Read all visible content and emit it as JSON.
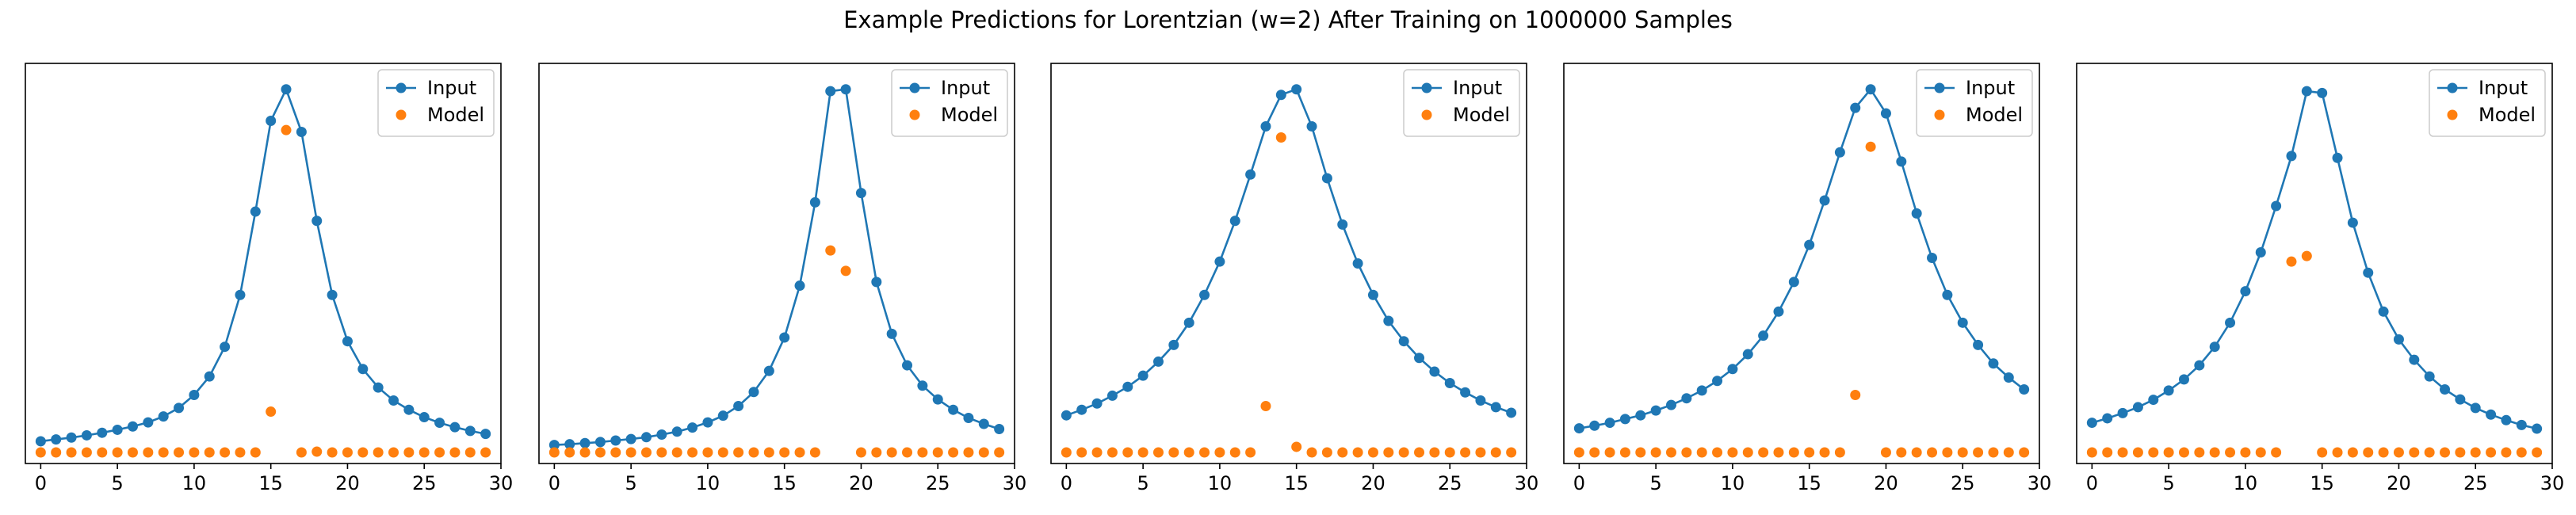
{
  "figure": {
    "title": "Example Predictions for Lorentzian (w=2) After Training on 1000000 Samples"
  },
  "colors": {
    "input": "#1f77b4",
    "model": "#ff7f0e",
    "axes": "#000000",
    "background": "#ffffff"
  },
  "chart_data": [
    {
      "type": "line",
      "legend": [
        "Input",
        "Model"
      ],
      "legend_position": "top-right",
      "grid": false,
      "xlim": [
        -1,
        30
      ],
      "ylim": [
        -0.01,
        1.07
      ],
      "xticks": [
        0,
        5,
        10,
        15,
        20,
        25,
        30
      ],
      "series": [
        {
          "name": "Input",
          "style": "line+markers",
          "x": [
            0,
            1,
            2,
            3,
            4,
            5,
            6,
            7,
            8,
            9,
            10,
            11,
            12,
            13,
            14,
            15,
            16,
            17,
            18,
            19,
            20,
            21,
            22,
            23,
            24,
            25,
            26,
            27,
            28,
            29
          ],
          "y": [
            0.05,
            0.055,
            0.06,
            0.066,
            0.073,
            0.081,
            0.09,
            0.101,
            0.117,
            0.14,
            0.175,
            0.225,
            0.305,
            0.445,
            0.67,
            0.915,
            1.0,
            0.885,
            0.645,
            0.445,
            0.32,
            0.245,
            0.195,
            0.16,
            0.135,
            0.115,
            0.1,
            0.088,
            0.078,
            0.07
          ]
        },
        {
          "name": "Model",
          "style": "markers",
          "x": [
            0,
            1,
            2,
            3,
            4,
            5,
            6,
            7,
            8,
            9,
            10,
            11,
            12,
            13,
            14,
            15,
            16,
            17,
            18,
            19,
            20,
            21,
            22,
            23,
            24,
            25,
            26,
            27,
            28,
            29
          ],
          "y": [
            0.02,
            0.02,
            0.02,
            0.02,
            0.02,
            0.02,
            0.02,
            0.02,
            0.02,
            0.02,
            0.02,
            0.02,
            0.02,
            0.02,
            0.02,
            0.13,
            0.89,
            0.02,
            0.022,
            0.02,
            0.02,
            0.02,
            0.02,
            0.02,
            0.02,
            0.02,
            0.02,
            0.02,
            0.02,
            0.02
          ]
        }
      ]
    },
    {
      "type": "line",
      "legend": [
        "Input",
        "Model"
      ],
      "legend_position": "top-right",
      "grid": false,
      "xlim": [
        -1,
        30
      ],
      "ylim": [
        -0.01,
        1.07
      ],
      "xticks": [
        0,
        5,
        10,
        15,
        20,
        25,
        30
      ],
      "series": [
        {
          "name": "Input",
          "style": "line+markers",
          "x": [
            0,
            1,
            2,
            3,
            4,
            5,
            6,
            7,
            8,
            9,
            10,
            11,
            12,
            13,
            14,
            15,
            16,
            17,
            18,
            19,
            20,
            21,
            22,
            23,
            24,
            25,
            26,
            27,
            28,
            29
          ],
          "y": [
            0.04,
            0.042,
            0.045,
            0.048,
            0.052,
            0.056,
            0.061,
            0.068,
            0.076,
            0.087,
            0.101,
            0.119,
            0.145,
            0.183,
            0.24,
            0.33,
            0.47,
            0.695,
            0.995,
            1.0,
            0.72,
            0.48,
            0.34,
            0.255,
            0.2,
            0.163,
            0.135,
            0.113,
            0.097,
            0.083
          ]
        },
        {
          "name": "Model",
          "style": "markers",
          "x": [
            0,
            1,
            2,
            3,
            4,
            5,
            6,
            7,
            8,
            9,
            10,
            11,
            12,
            13,
            14,
            15,
            16,
            17,
            18,
            19,
            20,
            21,
            22,
            23,
            24,
            25,
            26,
            27,
            28,
            29
          ],
          "y": [
            0.02,
            0.02,
            0.02,
            0.02,
            0.02,
            0.02,
            0.02,
            0.02,
            0.02,
            0.02,
            0.02,
            0.02,
            0.02,
            0.02,
            0.02,
            0.02,
            0.02,
            0.02,
            0.565,
            0.51,
            0.02,
            0.02,
            0.02,
            0.02,
            0.02,
            0.02,
            0.02,
            0.02,
            0.02,
            0.02
          ]
        }
      ]
    },
    {
      "type": "line",
      "legend": [
        "Input",
        "Model"
      ],
      "legend_position": "top-right",
      "grid": false,
      "xlim": [
        -1,
        30
      ],
      "ylim": [
        -0.01,
        1.07
      ],
      "xticks": [
        0,
        5,
        10,
        15,
        20,
        25,
        30
      ],
      "series": [
        {
          "name": "Input",
          "style": "line+markers",
          "x": [
            0,
            1,
            2,
            3,
            4,
            5,
            6,
            7,
            8,
            9,
            10,
            11,
            12,
            13,
            14,
            15,
            16,
            17,
            18,
            19,
            20,
            21,
            22,
            23,
            24,
            25,
            26,
            27,
            28,
            29
          ],
          "y": [
            0.12,
            0.135,
            0.152,
            0.173,
            0.197,
            0.227,
            0.265,
            0.31,
            0.37,
            0.445,
            0.535,
            0.645,
            0.77,
            0.9,
            0.985,
            1.0,
            0.9,
            0.76,
            0.635,
            0.53,
            0.445,
            0.375,
            0.32,
            0.275,
            0.238,
            0.207,
            0.182,
            0.16,
            0.142,
            0.127
          ]
        },
        {
          "name": "Model",
          "style": "markers",
          "x": [
            0,
            1,
            2,
            3,
            4,
            5,
            6,
            7,
            8,
            9,
            10,
            11,
            12,
            13,
            14,
            15,
            16,
            17,
            18,
            19,
            20,
            21,
            22,
            23,
            24,
            25,
            26,
            27,
            28,
            29
          ],
          "y": [
            0.02,
            0.02,
            0.02,
            0.02,
            0.02,
            0.02,
            0.02,
            0.02,
            0.02,
            0.02,
            0.02,
            0.02,
            0.02,
            0.145,
            0.87,
            0.035,
            0.02,
            0.02,
            0.02,
            0.02,
            0.02,
            0.02,
            0.02,
            0.02,
            0.02,
            0.02,
            0.02,
            0.02,
            0.02,
            0.02
          ]
        }
      ]
    },
    {
      "type": "line",
      "legend": [
        "Input",
        "Model"
      ],
      "legend_position": "top-right",
      "grid": false,
      "xlim": [
        -1,
        30
      ],
      "ylim": [
        -0.01,
        1.07
      ],
      "xticks": [
        0,
        5,
        10,
        15,
        20,
        25,
        30
      ],
      "series": [
        {
          "name": "Input",
          "style": "line+markers",
          "x": [
            0,
            1,
            2,
            3,
            4,
            5,
            6,
            7,
            8,
            9,
            10,
            11,
            12,
            13,
            14,
            15,
            16,
            17,
            18,
            19,
            20,
            21,
            22,
            23,
            24,
            25,
            26,
            27,
            28,
            29
          ],
          "y": [
            0.085,
            0.092,
            0.1,
            0.11,
            0.12,
            0.133,
            0.148,
            0.166,
            0.187,
            0.213,
            0.245,
            0.285,
            0.335,
            0.4,
            0.48,
            0.58,
            0.7,
            0.83,
            0.95,
            1.0,
            0.935,
            0.805,
            0.665,
            0.545,
            0.445,
            0.37,
            0.31,
            0.26,
            0.222,
            0.19
          ]
        },
        {
          "name": "Model",
          "style": "markers",
          "x": [
            0,
            1,
            2,
            3,
            4,
            5,
            6,
            7,
            8,
            9,
            10,
            11,
            12,
            13,
            14,
            15,
            16,
            17,
            18,
            19,
            20,
            21,
            22,
            23,
            24,
            25,
            26,
            27,
            28,
            29
          ],
          "y": [
            0.02,
            0.02,
            0.02,
            0.02,
            0.02,
            0.02,
            0.02,
            0.02,
            0.02,
            0.02,
            0.02,
            0.02,
            0.02,
            0.02,
            0.02,
            0.02,
            0.02,
            0.02,
            0.175,
            0.845,
            0.02,
            0.02,
            0.02,
            0.02,
            0.02,
            0.02,
            0.02,
            0.02,
            0.02,
            0.02
          ]
        }
      ]
    },
    {
      "type": "line",
      "legend": [
        "Input",
        "Model"
      ],
      "legend_position": "top-right",
      "grid": false,
      "xlim": [
        -1,
        30
      ],
      "ylim": [
        -0.01,
        1.07
      ],
      "xticks": [
        0,
        5,
        10,
        15,
        20,
        25,
        30
      ],
      "series": [
        {
          "name": "Input",
          "style": "line+markers",
          "x": [
            0,
            1,
            2,
            3,
            4,
            5,
            6,
            7,
            8,
            9,
            10,
            11,
            12,
            13,
            14,
            15,
            16,
            17,
            18,
            19,
            20,
            21,
            22,
            23,
            24,
            25,
            26,
            27,
            28,
            29
          ],
          "y": [
            0.1,
            0.112,
            0.126,
            0.142,
            0.162,
            0.187,
            0.217,
            0.255,
            0.305,
            0.37,
            0.455,
            0.56,
            0.685,
            0.82,
            0.995,
            0.99,
            0.815,
            0.64,
            0.505,
            0.4,
            0.325,
            0.27,
            0.225,
            0.19,
            0.163,
            0.14,
            0.122,
            0.107,
            0.094,
            0.084
          ]
        },
        {
          "name": "Model",
          "style": "markers",
          "x": [
            0,
            1,
            2,
            3,
            4,
            5,
            6,
            7,
            8,
            9,
            10,
            11,
            12,
            13,
            14,
            15,
            16,
            17,
            18,
            19,
            20,
            21,
            22,
            23,
            24,
            25,
            26,
            27,
            28,
            29
          ],
          "y": [
            0.02,
            0.02,
            0.02,
            0.02,
            0.02,
            0.02,
            0.02,
            0.02,
            0.02,
            0.02,
            0.02,
            0.02,
            0.02,
            0.535,
            0.55,
            0.02,
            0.02,
            0.02,
            0.02,
            0.02,
            0.02,
            0.02,
            0.02,
            0.02,
            0.02,
            0.02,
            0.02,
            0.02,
            0.02,
            0.02
          ]
        }
      ]
    }
  ]
}
